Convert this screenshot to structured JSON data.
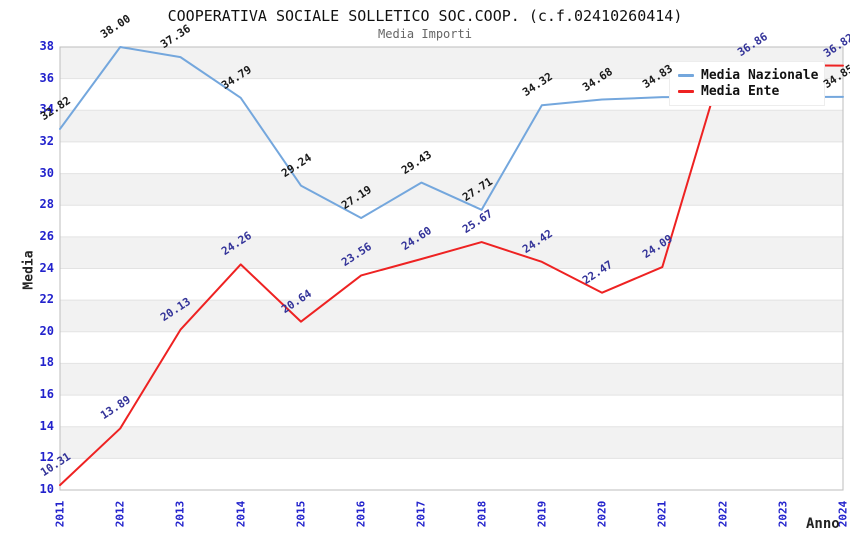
{
  "header": {
    "title": "COOPERATIVA SOCIALE SOLLETICO SOC.COOP. (c.f.02410260414)",
    "subtitle": "Media Importi"
  },
  "chart_data": {
    "type": "line",
    "title": "COOPERATIVA SOCIALE SOLLETICO SOC.COOP. (c.f.02410260414)",
    "subtitle": "Media Importi",
    "xlabel": "Anno",
    "ylabel": "Media",
    "categories": [
      "2011",
      "2012",
      "2013",
      "2014",
      "2015",
      "2016",
      "2017",
      "2018",
      "2019",
      "2020",
      "2021",
      "2022",
      "2023",
      "2024"
    ],
    "ylim": [
      10,
      38
    ],
    "ytick_step": 2,
    "grid": "horizontal-gridlines-with-alternating-bands",
    "legend_position": "top-right-inside",
    "series": [
      {
        "name": "Media Nazionale",
        "color": "#74a7dd",
        "label_color": "#1a1a1a",
        "values": [
          32.82,
          38.0,
          37.36,
          34.79,
          29.24,
          27.19,
          29.43,
          27.71,
          34.32,
          34.68,
          34.83,
          34.84,
          34.84,
          34.85
        ],
        "point_labels": [
          "32.82",
          "38.00",
          "37.36",
          "34.79",
          "29.24",
          "27.19",
          "29.43",
          "27.71",
          "34.32",
          "34.68",
          "34.83",
          null,
          null,
          "34.85"
        ],
        "label_dx": [
          0,
          0,
          0,
          0,
          0,
          0,
          0,
          0,
          0,
          0,
          0,
          0,
          0,
          0
        ]
      },
      {
        "name": "Media Ente",
        "color": "#ee2222",
        "label_color": "#333399",
        "values": [
          10.31,
          13.89,
          20.13,
          24.26,
          20.64,
          23.56,
          24.6,
          25.67,
          24.42,
          22.47,
          24.09,
          36.86,
          36.85,
          36.82
        ],
        "point_labels": [
          "10.31",
          "13.89",
          "20.13",
          "24.26",
          "20.64",
          "23.56",
          "24.60",
          "25.67",
          "24.42",
          "22.47",
          "24.09",
          "36.86",
          null,
          "36.82"
        ],
        "label_dx": [
          0,
          0,
          0,
          0,
          0,
          0,
          0,
          0,
          0,
          0,
          0,
          34,
          0,
          0
        ]
      }
    ]
  },
  "colors": {
    "tick_label": "#2222cc",
    "band": "#f2f2f2",
    "gridline": "#e3e3e3",
    "plot_border": "#bdbdbd",
    "subtitle_text": "#666666",
    "background": "#ffffff",
    "legend_bg": "#ffffff"
  }
}
